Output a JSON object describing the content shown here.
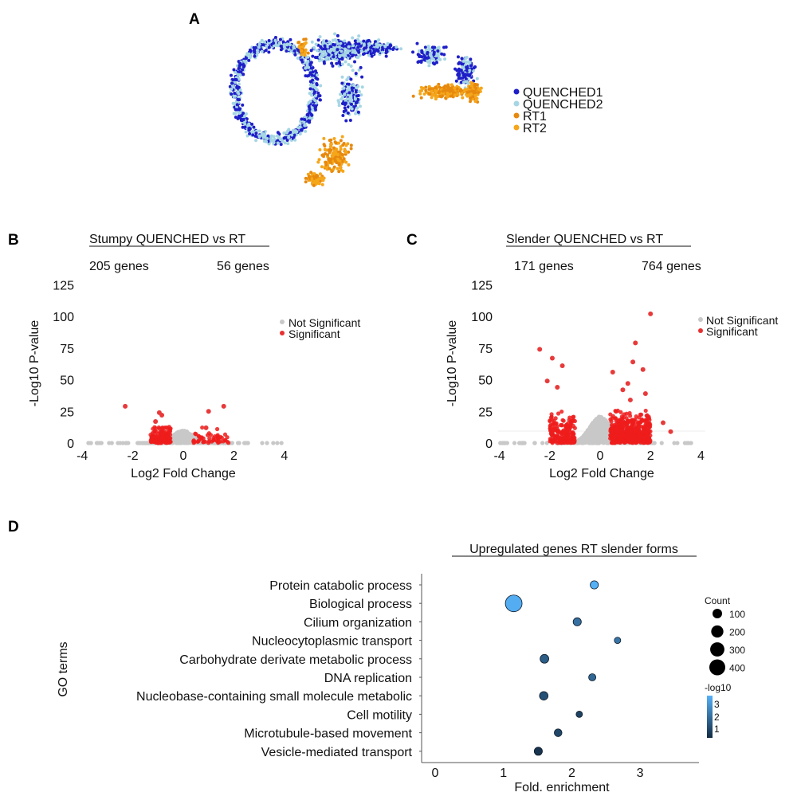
{
  "chart_data": [
    {
      "panel": "A",
      "type": "scatter",
      "legend": [
        {
          "name": "QUENCHED1",
          "color": "#1f1fc8"
        },
        {
          "name": "QUENCHED2",
          "color": "#a6d6e4"
        },
        {
          "name": "RT1",
          "color": "#e6890f"
        },
        {
          "name": "RT2",
          "color": "#f5a61a"
        }
      ],
      "legend_position": "right"
    },
    {
      "panel": "B",
      "type": "scatter",
      "title": "Stumpy QUENCHED vs RT",
      "counts": {
        "down": "205 genes",
        "up": "56 genes"
      },
      "xlabel": "Log2 Fold Change",
      "ylabel": "-Log10 P-value",
      "xlim": [
        -4,
        4
      ],
      "ylim": [
        0,
        125
      ],
      "xticks": [
        "-4",
        "-2",
        "0",
        "2",
        "4"
      ],
      "yticks": [
        "0",
        "25",
        "50",
        "75",
        "100",
        "125"
      ],
      "legend": [
        {
          "name": "Not Significant",
          "color": "#c8c8c8"
        },
        {
          "name": "Significant",
          "color": "#e82020"
        }
      ],
      "legend_position": "right",
      "significant_outliers": [
        [
          -2.3,
          29
        ],
        [
          -0.95,
          24
        ],
        [
          -0.85,
          22
        ],
        [
          -1.1,
          17
        ],
        [
          1.0,
          25
        ],
        [
          1.6,
          29
        ],
        [
          0.9,
          12
        ]
      ],
      "spread": {
        "sig_left": [
          -1.3,
          -0.5
        ],
        "sig_right": [
          0.4,
          1.8
        ],
        "max_cloud_y": 14
      }
    },
    {
      "panel": "C",
      "type": "scatter",
      "title": "Slender QUENCHED vs RT",
      "counts": {
        "down": "171 genes",
        "up": "764 genes"
      },
      "xlabel": "Log2 Fold Change",
      "ylabel": "-Log10 P-value",
      "xlim": [
        -4,
        4
      ],
      "ylim": [
        0,
        125
      ],
      "xticks": [
        "-4",
        "-2",
        "0",
        "2",
        "4"
      ],
      "yticks": [
        "0",
        "25",
        "50",
        "75",
        "100",
        "125"
      ],
      "legend": [
        {
          "name": "Not Significant",
          "color": "#c8c8c8"
        },
        {
          "name": "Significant",
          "color": "#e82020"
        }
      ],
      "legend_position": "right",
      "significant_outliers": [
        [
          2.0,
          102
        ],
        [
          -2.4,
          74
        ],
        [
          1.4,
          79
        ],
        [
          -1.9,
          67
        ],
        [
          -1.5,
          61
        ],
        [
          1.3,
          64
        ],
        [
          1.7,
          58
        ],
        [
          -2.1,
          49
        ],
        [
          0.5,
          56
        ],
        [
          1.1,
          47
        ],
        [
          -1.7,
          44
        ],
        [
          1.8,
          39
        ],
        [
          1.2,
          34
        ],
        [
          2.5,
          16
        ],
        [
          2.8,
          9
        ],
        [
          0.9,
          42
        ]
      ],
      "spread": {
        "sig_left": [
          -2.0,
          -1.0
        ],
        "sig_right": [
          0.4,
          2.0
        ],
        "max_cloud_y": 30
      }
    },
    {
      "panel": "D",
      "type": "bubble",
      "title": "Upregulated genes RT slender forms",
      "xlabel": "Fold. enrichment",
      "ylabel": "GO terms",
      "xlim": [
        -0.2,
        3.85
      ],
      "xticks": [
        "0",
        "1",
        "2",
        "3"
      ],
      "terms": [
        {
          "term": "Protein catabolic process",
          "fold": 2.33,
          "count": 60,
          "neglog10": 3.3
        },
        {
          "term": "Biological process",
          "fold": 1.15,
          "count": 450,
          "neglog10": 3.2
        },
        {
          "term": "Cilium organization",
          "fold": 2.08,
          "count": 60,
          "neglog10": 1.9
        },
        {
          "term": "Nucleocytoplasmic transport",
          "fold": 2.67,
          "count": 25,
          "neglog10": 2.0
        },
        {
          "term": "Carbohydrate derivate metabolic process",
          "fold": 1.6,
          "count": 75,
          "neglog10": 1.5
        },
        {
          "term": "DNA replication",
          "fold": 2.3,
          "count": 40,
          "neglog10": 1.7
        },
        {
          "term": "Nucleobase-containing small molecule metabolic",
          "fold": 1.59,
          "count": 70,
          "neglog10": 1.2
        },
        {
          "term": "Cell motility",
          "fold": 2.11,
          "count": 25,
          "neglog10": 0.9
        },
        {
          "term": "Microtubule-based movement",
          "fold": 1.8,
          "count": 50,
          "neglog10": 1.0
        },
        {
          "term": "Vesicle-mediated transport",
          "fold": 1.51,
          "count": 60,
          "neglog10": 0.6
        }
      ],
      "size_legend": {
        "title": "Count",
        "values": [
          100,
          200,
          300,
          400
        ]
      },
      "color_legend": {
        "title": "-log10",
        "ticks": [
          "1",
          "2",
          "3"
        ],
        "low": "#132B43",
        "high": "#56B1F7"
      }
    }
  ],
  "panel_labels": [
    "A",
    "B",
    "C",
    "D"
  ]
}
